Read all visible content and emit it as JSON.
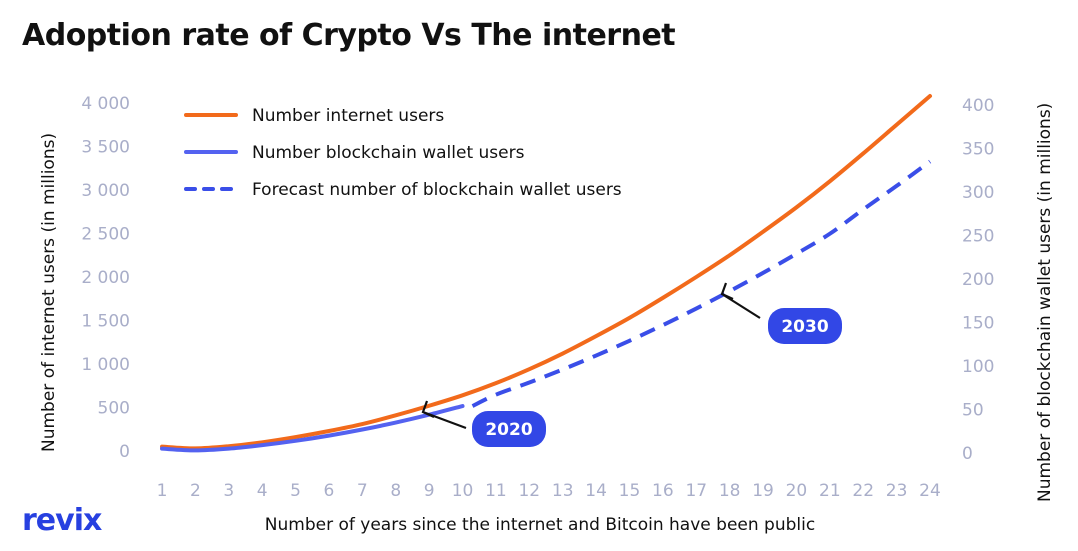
{
  "chart_data": {
    "type": "line",
    "title": "Adoption rate of Crypto Vs The internet",
    "xlabel": "Number of years since the internet and Bitcoin have been public",
    "ylabel_left": "Number of internet users (in millions)",
    "ylabel_right": "Number of blockchain wallet users (in millions)",
    "x": [
      1,
      2,
      3,
      4,
      5,
      6,
      7,
      8,
      9,
      10,
      11,
      12,
      13,
      14,
      15,
      16,
      17,
      18,
      19,
      20,
      21,
      22,
      23,
      24
    ],
    "ylim_left": [
      0,
      4000
    ],
    "ylim_right": [
      0,
      400
    ],
    "yticks_left": [
      "0",
      "500",
      "1 000",
      "1 500",
      "2 000",
      "2 500",
      "3 000",
      "3 500",
      "4 000"
    ],
    "yticks_right": [
      "0",
      "50",
      "100",
      "150",
      "200",
      "250",
      "300",
      "350",
      "400"
    ],
    "legend_position": "top-left",
    "series": [
      {
        "name": "Number internet users",
        "axis": "left",
        "color": "#f26a1b",
        "style": "solid",
        "x": [
          1,
          2,
          3,
          4,
          5,
          6,
          7,
          8,
          9,
          10,
          11,
          12,
          13,
          14,
          15,
          16,
          17,
          18,
          19,
          20,
          21,
          22,
          23,
          24
        ],
        "values": [
          50,
          30,
          55,
          100,
          160,
          230,
          310,
          410,
          520,
          640,
          780,
          940,
          1120,
          1320,
          1530,
          1760,
          2000,
          2250,
          2520,
          2800,
          3100,
          3420,
          3750,
          4080
        ]
      },
      {
        "name": "Number blockchain wallet users",
        "axis": "right",
        "color": "#5462f0",
        "style": "solid",
        "x": [
          1,
          2,
          3,
          4,
          5,
          6,
          7,
          8,
          9,
          10
        ],
        "values": [
          5,
          3,
          5,
          9,
          14,
          20,
          27,
          35,
          44,
          54
        ]
      },
      {
        "name": "Forecast number of blockchain wallet users",
        "axis": "right",
        "color": "#3a4ee8",
        "style": "dashed",
        "x": [
          10,
          11,
          12,
          13,
          14,
          15,
          16,
          17,
          18,
          19,
          20,
          21,
          22,
          23,
          24
        ],
        "values": [
          54,
          67,
          81,
          96,
          112,
          129,
          147,
          166,
          186,
          207,
          229,
          252,
          280,
          307,
          335
        ]
      }
    ],
    "annotations": [
      {
        "text": "2020",
        "x": 10
      },
      {
        "text": "2030",
        "x": 18
      }
    ]
  },
  "brand": "revix"
}
